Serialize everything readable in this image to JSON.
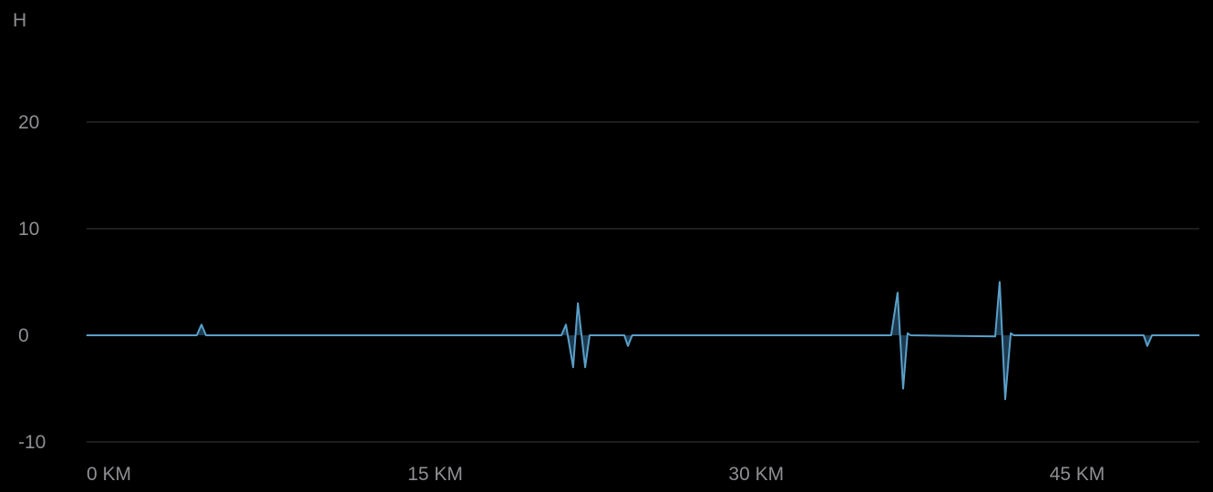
{
  "chart_data": {
    "type": "area",
    "ylabel": "H",
    "xlabel": "",
    "xlim": [
      0,
      52
    ],
    "ylim": [
      -10,
      20
    ],
    "grid": true,
    "x_ticks": [
      {
        "value": 0,
        "label": "0 KM"
      },
      {
        "value": 15,
        "label": "15 KM"
      },
      {
        "value": 30,
        "label": "30 KM"
      },
      {
        "value": 45,
        "label": "45 KM"
      }
    ],
    "y_ticks": [
      {
        "value": 20,
        "label": "20"
      },
      {
        "value": 10,
        "label": "10"
      },
      {
        "value": 0,
        "label": "0"
      },
      {
        "value": -10,
        "label": "-10"
      }
    ],
    "line_color": "#5a9fc8",
    "fill_color": "#1c3a4f",
    "grid_color": "#3a3a3c",
    "x": [
      0,
      5.15,
      5.37,
      5.58,
      22.19,
      22.4,
      22.74,
      22.96,
      23.3,
      23.51,
      25.13,
      25.3,
      25.5,
      37.6,
      37.9,
      38.16,
      38.37,
      38.5,
      42.46,
      42.67,
      42.93,
      43.19,
      43.32,
      49.4,
      49.57,
      49.79,
      52
    ],
    "values": [
      0,
      0,
      1,
      0,
      0,
      1,
      -3,
      3,
      -3,
      0,
      0,
      -1,
      0,
      0,
      4,
      -5,
      0.2,
      0,
      -0.1,
      5,
      -6,
      0.2,
      0,
      0,
      -1,
      0,
      0
    ]
  }
}
